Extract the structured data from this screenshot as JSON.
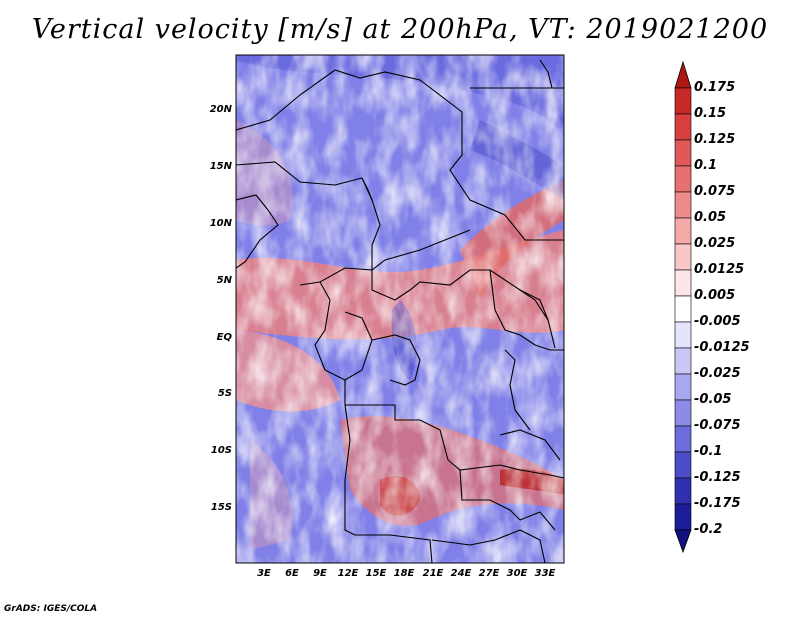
{
  "title": "Vertical velocity [m/s] at 200hPa, VT: 2019021200",
  "credit": "GrADS: IGES/COLA",
  "map": {
    "variable": "Vertical velocity",
    "units": "m/s",
    "level": "200hPa",
    "valid_time": "2019021200",
    "lat_labels": [
      "20N",
      "15N",
      "10N",
      "5N",
      "EQ",
      "5S",
      "10S",
      "15S"
    ],
    "lon_labels": [
      "3E",
      "6E",
      "9E",
      "12E",
      "15E",
      "18E",
      "21E",
      "24E",
      "27E",
      "30E",
      "33E"
    ]
  },
  "colorbar": {
    "labels": [
      "0.175",
      "0.15",
      "0.125",
      "0.1",
      "0.075",
      "0.05",
      "0.025",
      "0.0125",
      "0.005",
      "-0.005",
      "-0.0125",
      "-0.025",
      "-0.05",
      "-0.075",
      "-0.1",
      "-0.125",
      "-0.175",
      "-0.2"
    ],
    "colors": [
      "#b01818",
      "#c82828",
      "#d84040",
      "#e05858",
      "#e87070",
      "#ee8c8c",
      "#f4a8a8",
      "#f8c8c8",
      "#fce6e6",
      "#ffffff",
      "#e4e4fc",
      "#c8c8f6",
      "#a8a8f0",
      "#8c8ce8",
      "#6c6cdc",
      "#4c4cc8",
      "#3030b0",
      "#1c1c98",
      "#101080"
    ]
  }
}
